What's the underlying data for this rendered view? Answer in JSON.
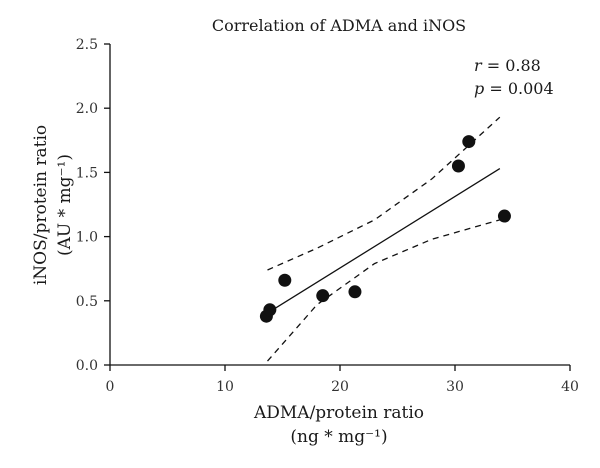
{
  "chart_data": {
    "type": "scatter",
    "title": "Correlation of ADMA and iNOS",
    "xlabel_line1": "ADMA/protein ratio",
    "xlabel_line2": "(ng * mg⁻¹)",
    "ylabel_line1": "iNOS/protein ratio",
    "ylabel_line2": "(AU * mg⁻¹)",
    "xlim": [
      0,
      40
    ],
    "ylim": [
      0,
      2.5
    ],
    "x_ticks": [
      0,
      10,
      20,
      30,
      40
    ],
    "y_ticks": [
      0.0,
      0.5,
      1.0,
      1.5,
      2.0,
      2.5
    ],
    "x_tick_labels": [
      "0",
      "10",
      "20",
      "30",
      "40"
    ],
    "y_tick_labels": [
      "0.0",
      "0.5",
      "1.0",
      "1.5",
      "2.0",
      "2.5"
    ],
    "grid": false,
    "points": [
      {
        "x": 13.6,
        "y": 0.38
      },
      {
        "x": 13.9,
        "y": 0.43
      },
      {
        "x": 15.2,
        "y": 0.66
      },
      {
        "x": 18.5,
        "y": 0.54
      },
      {
        "x": 21.3,
        "y": 0.57
      },
      {
        "x": 30.3,
        "y": 1.55
      },
      {
        "x": 31.2,
        "y": 1.74
      },
      {
        "x": 34.3,
        "y": 1.16
      }
    ],
    "fit_line": {
      "x": [
        13.8,
        33.9
      ],
      "y": [
        0.41,
        1.53
      ]
    },
    "ci_upper": {
      "x": [
        13.7,
        18,
        23,
        28,
        33.9
      ],
      "y": [
        0.74,
        0.91,
        1.13,
        1.45,
        1.93
      ]
    },
    "ci_lower": {
      "x": [
        13.7,
        18,
        23,
        28,
        33.9
      ],
      "y": [
        0.03,
        0.47,
        0.79,
        0.98,
        1.13
      ]
    },
    "annotation": {
      "r_symbol": "r",
      "r_value": " = 0.88",
      "p_symbol": "p",
      "p_value": " = 0.004"
    }
  }
}
